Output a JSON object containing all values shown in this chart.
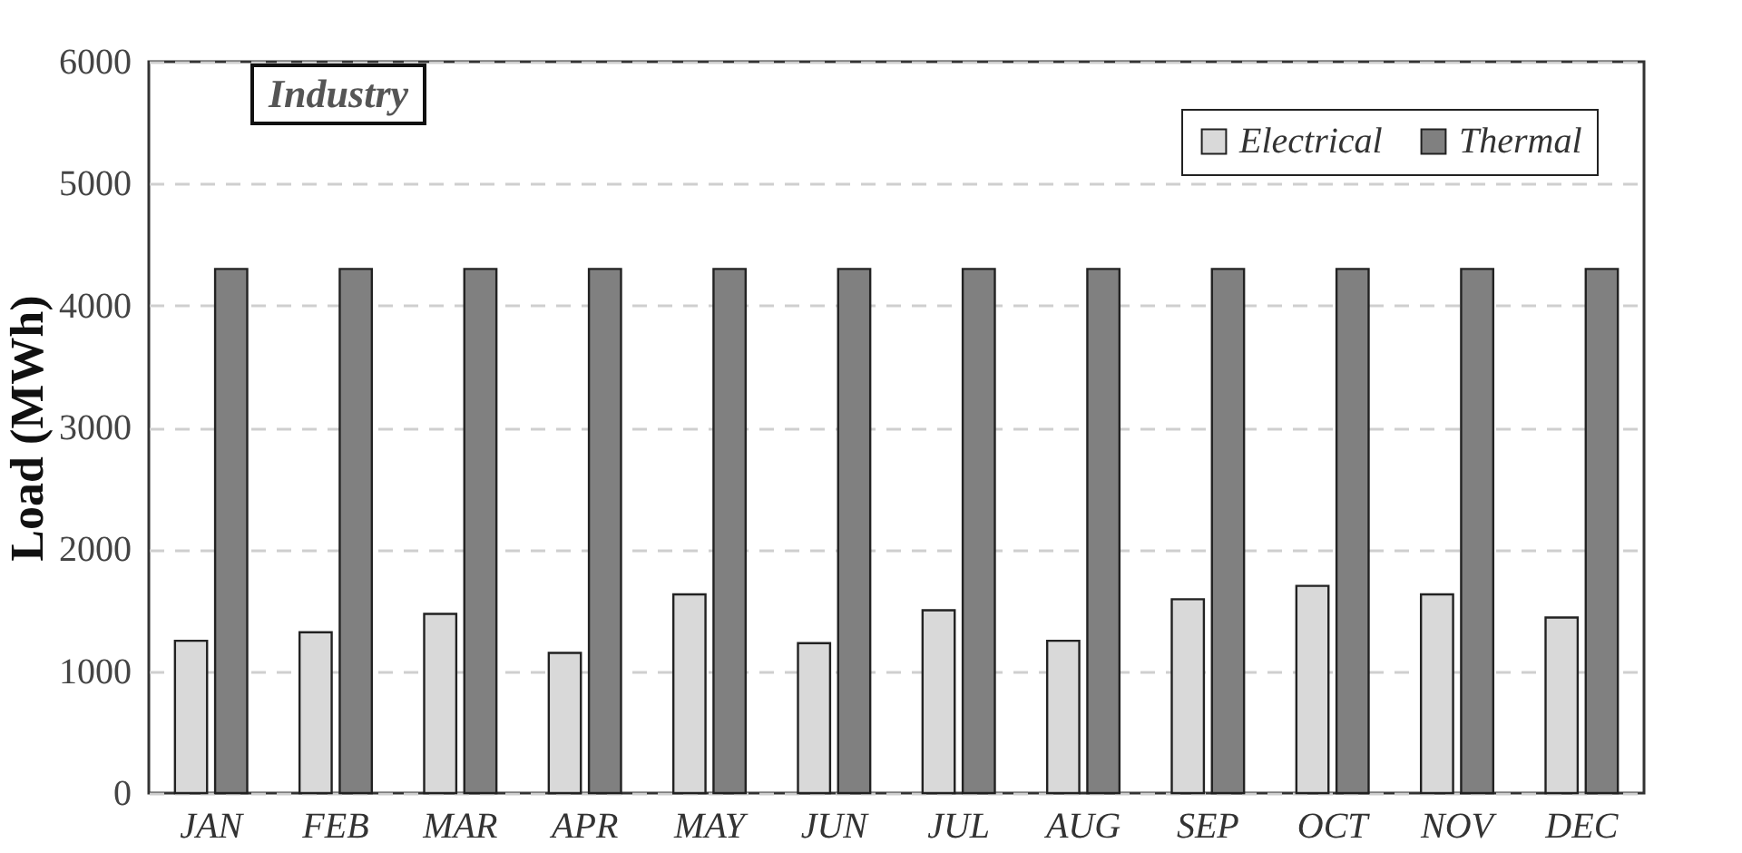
{
  "chart_data": {
    "type": "bar",
    "title": "Industry",
    "ylabel": "Load (MWh)",
    "categories": [
      "JAN",
      "FEB",
      "MAR",
      "APR",
      "MAY",
      "JUN",
      "JUL",
      "AUG",
      "SEP",
      "OCT",
      "NOV",
      "DEC"
    ],
    "series": [
      {
        "name": "Electrical",
        "color": "#d9d9d9",
        "values": [
          1250,
          1320,
          1470,
          1150,
          1630,
          1230,
          1500,
          1250,
          1590,
          1700,
          1630,
          1440
        ]
      },
      {
        "name": "Thermal",
        "color": "#808080",
        "values": [
          4300,
          4300,
          4300,
          4300,
          4300,
          4300,
          4300,
          4300,
          4300,
          4300,
          4300,
          4300
        ]
      }
    ],
    "ylim": [
      0,
      6000
    ],
    "yticks": [
      0,
      1000,
      2000,
      3000,
      4000,
      5000,
      6000
    ],
    "grid": "y",
    "legend": "top right"
  }
}
